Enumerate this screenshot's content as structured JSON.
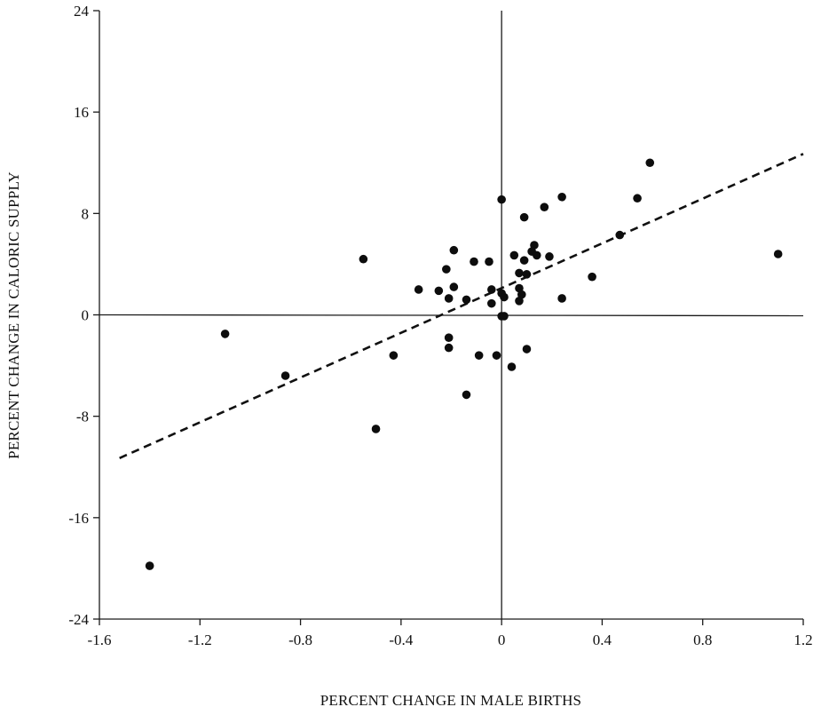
{
  "chart_data": {
    "type": "scatter",
    "xlabel": "PERCENT CHANGE IN MALE BIRTHS",
    "ylabel": "PERCENT CHANGE IN CALORIC SUPPLY",
    "xlim": [
      -1.6,
      1.2
    ],
    "ylim": [
      -24,
      24
    ],
    "xticks": [
      -1.6,
      -1.2,
      -0.8,
      -0.4,
      0,
      0.4,
      0.8,
      1.2
    ],
    "xtick_labels": [
      "-1.6",
      "-1.2",
      "-0.8",
      "-0.4",
      "0",
      "0.4",
      "0.8",
      "1.2"
    ],
    "yticks": [
      -24,
      -16,
      -8,
      0,
      8,
      16,
      24
    ],
    "ytick_labels": [
      "-24",
      "-16",
      "-8",
      "0",
      "8",
      "16",
      "24"
    ],
    "grid": false,
    "zero_lines": true,
    "points": [
      {
        "x": -1.4,
        "y": -19.8
      },
      {
        "x": -1.1,
        "y": -1.5
      },
      {
        "x": -0.86,
        "y": -4.8
      },
      {
        "x": -0.55,
        "y": 4.4
      },
      {
        "x": -0.5,
        "y": -9.0
      },
      {
        "x": -0.43,
        "y": -3.2
      },
      {
        "x": -0.33,
        "y": 2.0
      },
      {
        "x": -0.25,
        "y": 1.9
      },
      {
        "x": -0.22,
        "y": 3.6
      },
      {
        "x": -0.21,
        "y": 1.3
      },
      {
        "x": -0.21,
        "y": -1.8
      },
      {
        "x": -0.21,
        "y": -2.6
      },
      {
        "x": -0.19,
        "y": 2.2
      },
      {
        "x": -0.19,
        "y": 5.1
      },
      {
        "x": -0.14,
        "y": 1.2
      },
      {
        "x": -0.14,
        "y": -6.3
      },
      {
        "x": -0.11,
        "y": 4.2
      },
      {
        "x": -0.09,
        "y": -3.2
      },
      {
        "x": -0.05,
        "y": 4.2
      },
      {
        "x": -0.04,
        "y": 2.0
      },
      {
        "x": -0.04,
        "y": 0.9
      },
      {
        "x": -0.02,
        "y": -3.2
      },
      {
        "x": 0.0,
        "y": 1.7
      },
      {
        "x": 0.0,
        "y": 9.1
      },
      {
        "x": 0.0,
        "y": -0.1
      },
      {
        "x": 0.01,
        "y": 1.4
      },
      {
        "x": 0.01,
        "y": -0.1
      },
      {
        "x": 0.04,
        "y": -4.1
      },
      {
        "x": 0.05,
        "y": 4.7
      },
      {
        "x": 0.07,
        "y": 3.3
      },
      {
        "x": 0.07,
        "y": 2.1
      },
      {
        "x": 0.07,
        "y": 1.1
      },
      {
        "x": 0.08,
        "y": 1.6
      },
      {
        "x": 0.09,
        "y": 7.7
      },
      {
        "x": 0.09,
        "y": 4.3
      },
      {
        "x": 0.1,
        "y": 3.2
      },
      {
        "x": 0.1,
        "y": -2.7
      },
      {
        "x": 0.12,
        "y": 5.0
      },
      {
        "x": 0.13,
        "y": 5.5
      },
      {
        "x": 0.14,
        "y": 4.7
      },
      {
        "x": 0.17,
        "y": 8.5
      },
      {
        "x": 0.19,
        "y": 4.6
      },
      {
        "x": 0.24,
        "y": 9.3
      },
      {
        "x": 0.24,
        "y": 1.3
      },
      {
        "x": 0.36,
        "y": 3.0
      },
      {
        "x": 0.47,
        "y": 6.3
      },
      {
        "x": 0.54,
        "y": 9.2
      },
      {
        "x": 0.59,
        "y": 12.0
      },
      {
        "x": 1.1,
        "y": 4.8
      }
    ],
    "fit_line": {
      "style": "dashed",
      "x": [
        -1.52,
        1.2
      ],
      "y": [
        -11.3,
        12.7
      ]
    }
  }
}
